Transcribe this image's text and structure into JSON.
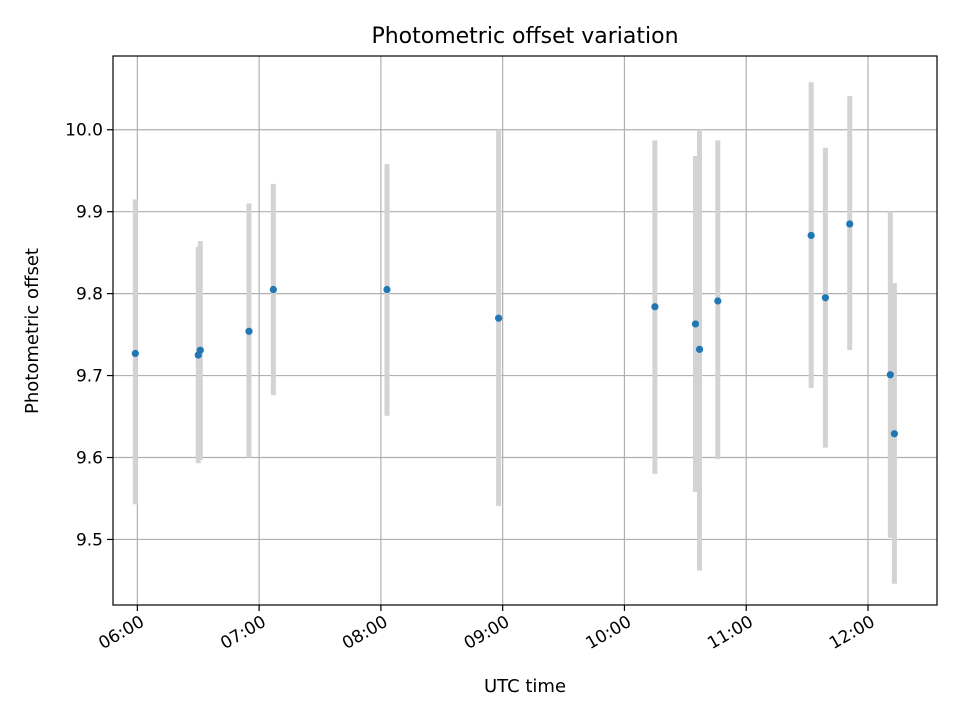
{
  "chart_data": {
    "type": "scatter",
    "title": "Photometric offset variation",
    "xlabel": "UTC time",
    "ylabel": "Photometric offset",
    "x_ticks": [
      "06:00",
      "07:00",
      "08:00",
      "09:00",
      "10:00",
      "11:00",
      "12:00"
    ],
    "y_ticks": [
      "9.5",
      "9.6",
      "9.7",
      "9.8",
      "9.9",
      "10.0"
    ],
    "xlim": [
      "05:48",
      "12:34"
    ],
    "ylim": [
      9.42,
      10.09
    ],
    "grid": true,
    "colors": {
      "points": "#1f77b4",
      "error_bars": "#d3d3d3",
      "grid": "#b0b0b0"
    },
    "points": [
      {
        "x": "05:59",
        "y": 9.727,
        "err_low": 9.543,
        "err_high": 9.915
      },
      {
        "x": "06:30",
        "y": 9.725,
        "err_low": 9.593,
        "err_high": 9.857
      },
      {
        "x": "06:31",
        "y": 9.731,
        "err_low": 9.597,
        "err_high": 9.864
      },
      {
        "x": "06:55",
        "y": 9.754,
        "err_low": 9.6,
        "err_high": 9.91
      },
      {
        "x": "07:07",
        "y": 9.805,
        "err_low": 9.676,
        "err_high": 9.934
      },
      {
        "x": "08:03",
        "y": 9.805,
        "err_low": 9.651,
        "err_high": 9.958
      },
      {
        "x": "08:58",
        "y": 9.77,
        "err_low": 9.541,
        "err_high": 10.0
      },
      {
        "x": "10:15",
        "y": 9.784,
        "err_low": 9.58,
        "err_high": 9.987
      },
      {
        "x": "10:35",
        "y": 9.763,
        "err_low": 9.558,
        "err_high": 9.968
      },
      {
        "x": "10:37",
        "y": 9.732,
        "err_low": 9.462,
        "err_high": 10.0
      },
      {
        "x": "10:46",
        "y": 9.791,
        "err_low": 9.598,
        "err_high": 9.987
      },
      {
        "x": "11:32",
        "y": 9.871,
        "err_low": 9.685,
        "err_high": 10.058
      },
      {
        "x": "11:39",
        "y": 9.795,
        "err_low": 9.612,
        "err_high": 9.978
      },
      {
        "x": "11:51",
        "y": 9.885,
        "err_low": 9.731,
        "err_high": 10.041
      },
      {
        "x": "12:11",
        "y": 9.701,
        "err_low": 9.502,
        "err_high": 9.9
      },
      {
        "x": "12:13",
        "y": 9.629,
        "err_low": 9.446,
        "err_high": 9.813
      }
    ]
  }
}
